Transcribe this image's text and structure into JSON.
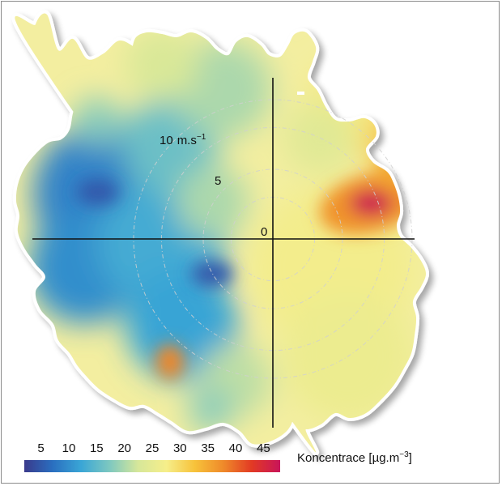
{
  "chart_data": {
    "type": "heatmap",
    "subtype": "polar concentration rose",
    "title": "",
    "radial_axis": {
      "unit_label": "m.s",
      "unit_exponent": "−1",
      "ticks": [
        {
          "value": 0,
          "label": "0"
        },
        {
          "value": 5,
          "label": "5"
        },
        {
          "value": 10,
          "label": "10"
        }
      ],
      "rings": [
        3,
        5,
        8,
        10
      ]
    },
    "colorbar": {
      "label_main": "Koncentrace [",
      "label_mu": "µ",
      "label_unit": "g.m",
      "label_exp": "−3",
      "label_close": "]",
      "ticks": [
        "5",
        "10",
        "15",
        "20",
        "25",
        "30",
        "35",
        "40",
        "45"
      ],
      "range": [
        2,
        48
      ],
      "colors": [
        "#3a3a8c",
        "#2a6fc0",
        "#3aa6d6",
        "#7ec8c0",
        "#d6e79a",
        "#f6ee8a",
        "#f7c23a",
        "#ef8a2a",
        "#e23a24",
        "#c8145a"
      ]
    },
    "hotspots": [
      {
        "direction_deg": 70,
        "speed": 7.5,
        "value": 47
      },
      {
        "direction_deg": 60,
        "speed": 10,
        "value": 35
      },
      {
        "direction_deg": 220,
        "speed": 11.5,
        "value": 38
      },
      {
        "direction_deg": 240,
        "speed": 5,
        "value": 5
      },
      {
        "direction_deg": 285,
        "speed": 13,
        "value": 5
      }
    ],
    "regions": [
      {
        "sector": "W / SW",
        "value_range": [
          5,
          15
        ]
      },
      {
        "sector": "N",
        "value_range": [
          20,
          25
        ]
      },
      {
        "sector": "E / SE",
        "value_range": [
          25,
          30
        ]
      }
    ]
  }
}
